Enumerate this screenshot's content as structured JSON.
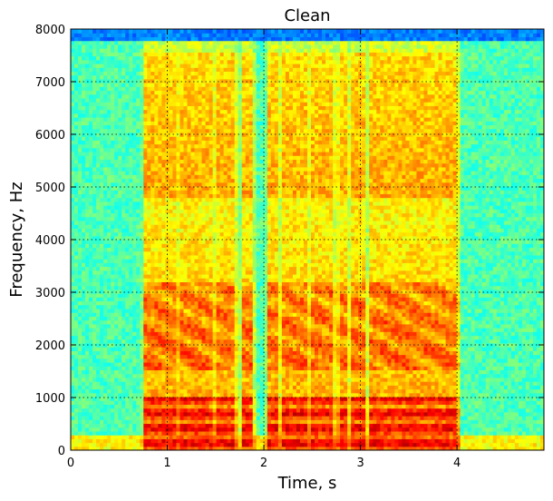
{
  "chart_data": {
    "type": "heatmap",
    "title": "Clean",
    "xlabel": "Time, s",
    "ylabel": "Frequency, Hz",
    "xlim": [
      0,
      4.9
    ],
    "ylim": [
      0,
      8000
    ],
    "x_ticks": [
      "0",
      "1",
      "2",
      "3",
      "4"
    ],
    "x_tick_values": [
      0,
      1,
      2,
      3,
      4
    ],
    "y_ticks": [
      "0",
      "1000",
      "2000",
      "3000",
      "4000",
      "5000",
      "6000",
      "7000",
      "8000"
    ],
    "y_tick_values": [
      0,
      1000,
      2000,
      3000,
      4000,
      5000,
      6000,
      7000,
      8000
    ],
    "grid": true,
    "grid_style": "dotted",
    "colormap": "jet",
    "description_values": {
      "speech_segments_s": [
        [
          0.77,
          0.95
        ],
        [
          0.95,
          1.1
        ],
        [
          1.12,
          1.45
        ],
        [
          1.5,
          1.7
        ],
        [
          1.78,
          1.88
        ],
        [
          2.05,
          2.15
        ],
        [
          2.2,
          2.45
        ],
        [
          2.48,
          2.72
        ],
        [
          2.78,
          2.85
        ],
        [
          2.9,
          3.05
        ],
        [
          3.1,
          3.55
        ],
        [
          3.55,
          3.75
        ],
        [
          3.75,
          4.0
        ]
      ],
      "background_level": 0.45,
      "top_band_level": 0.25
    }
  },
  "colors": {
    "background": "#ffffff",
    "axes": "#000000"
  }
}
